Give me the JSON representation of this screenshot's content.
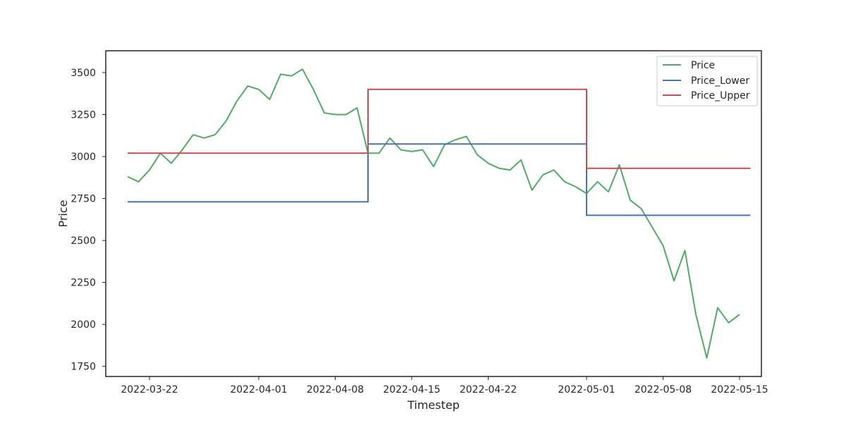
{
  "chart_data": {
    "type": "line",
    "title": "",
    "xlabel": "Timestep",
    "ylabel": "Price",
    "x_range": [
      "2022-03-18",
      "2022-05-17"
    ],
    "ylim": [
      1690,
      3630
    ],
    "x_ticks": [
      "2022-03-22",
      "2022-04-01",
      "2022-04-08",
      "2022-04-15",
      "2022-04-22",
      "2022-05-01",
      "2022-05-08",
      "2022-05-15"
    ],
    "y_ticks": [
      1750,
      2000,
      2250,
      2500,
      2750,
      3000,
      3250,
      3500
    ],
    "grid": false,
    "legend_position": "top-right",
    "series": [
      {
        "name": "Price",
        "color": "#55a868",
        "style": "line",
        "points": [
          [
            "2022-03-20",
            2880
          ],
          [
            "2022-03-21",
            2850
          ],
          [
            "2022-03-22",
            2920
          ],
          [
            "2022-03-23",
            3020
          ],
          [
            "2022-03-24",
            2960
          ],
          [
            "2022-03-25",
            3040
          ],
          [
            "2022-03-26",
            3130
          ],
          [
            "2022-03-27",
            3110
          ],
          [
            "2022-03-28",
            3130
          ],
          [
            "2022-03-29",
            3210
          ],
          [
            "2022-03-30",
            3330
          ],
          [
            "2022-03-31",
            3420
          ],
          [
            "2022-04-01",
            3400
          ],
          [
            "2022-04-02",
            3340
          ],
          [
            "2022-04-03",
            3490
          ],
          [
            "2022-04-04",
            3480
          ],
          [
            "2022-04-05",
            3520
          ],
          [
            "2022-04-06",
            3400
          ],
          [
            "2022-04-07",
            3260
          ],
          [
            "2022-04-08",
            3250
          ],
          [
            "2022-04-09",
            3250
          ],
          [
            "2022-04-10",
            3290
          ],
          [
            "2022-04-11",
            3020
          ],
          [
            "2022-04-12",
            3020
          ],
          [
            "2022-04-13",
            3110
          ],
          [
            "2022-04-14",
            3040
          ],
          [
            "2022-04-15",
            3030
          ],
          [
            "2022-04-16",
            3040
          ],
          [
            "2022-04-17",
            2940
          ],
          [
            "2022-04-18",
            3070
          ],
          [
            "2022-04-19",
            3100
          ],
          [
            "2022-04-20",
            3120
          ],
          [
            "2022-04-21",
            3010
          ],
          [
            "2022-04-22",
            2960
          ],
          [
            "2022-04-23",
            2930
          ],
          [
            "2022-04-24",
            2920
          ],
          [
            "2022-04-25",
            2980
          ],
          [
            "2022-04-26",
            2800
          ],
          [
            "2022-04-27",
            2890
          ],
          [
            "2022-04-28",
            2920
          ],
          [
            "2022-04-29",
            2850
          ],
          [
            "2022-04-30",
            2820
          ],
          [
            "2022-05-01",
            2780
          ],
          [
            "2022-05-02",
            2850
          ],
          [
            "2022-05-03",
            2790
          ],
          [
            "2022-05-04",
            2950
          ],
          [
            "2022-05-05",
            2740
          ],
          [
            "2022-05-06",
            2690
          ],
          [
            "2022-05-07",
            2580
          ],
          [
            "2022-05-08",
            2470
          ],
          [
            "2022-05-09",
            2260
          ],
          [
            "2022-05-10",
            2440
          ],
          [
            "2022-05-11",
            2060
          ],
          [
            "2022-05-12",
            1800
          ],
          [
            "2022-05-13",
            2100
          ],
          [
            "2022-05-14",
            2010
          ],
          [
            "2022-05-15",
            2060
          ]
        ]
      },
      {
        "name": "Price_Lower",
        "color": "#4c72b0",
        "style": "step",
        "points": [
          [
            "2022-03-20",
            2730
          ],
          [
            "2022-04-11",
            2730
          ],
          [
            "2022-04-11",
            3075
          ],
          [
            "2022-05-01",
            3075
          ],
          [
            "2022-05-01",
            2650
          ],
          [
            "2022-05-16",
            2650
          ]
        ]
      },
      {
        "name": "Price_Upper",
        "color": "#c44e52",
        "style": "step",
        "points": [
          [
            "2022-03-20",
            3020
          ],
          [
            "2022-04-11",
            3020
          ],
          [
            "2022-04-11",
            3400
          ],
          [
            "2022-05-01",
            3400
          ],
          [
            "2022-05-01",
            2930
          ],
          [
            "2022-05-16",
            2930
          ]
        ]
      }
    ]
  }
}
